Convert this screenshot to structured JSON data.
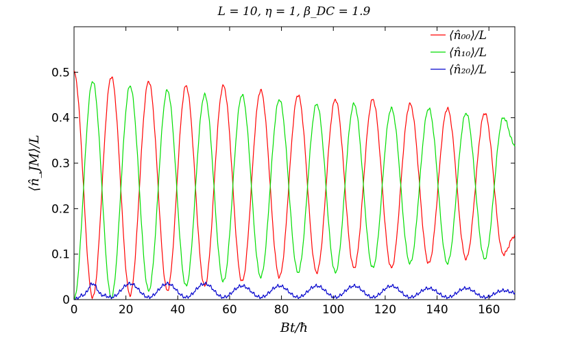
{
  "chart_data": {
    "type": "line",
    "title": "L = 10, η = 1, β_DC = 1.9",
    "xlabel": "Bt/ħ",
    "ylabel": "⟨n̂_JM⟩/L",
    "xlim": [
      0,
      170
    ],
    "ylim": [
      0,
      0.6
    ],
    "x_ticks": [
      "0",
      "20",
      "40",
      "60",
      "80",
      "100",
      "120",
      "140",
      "160"
    ],
    "y_ticks": [
      "0",
      "0.1",
      "0.2",
      "0.3",
      "0.4",
      "0.5"
    ],
    "grid": false,
    "legend_position": "top-right",
    "series": [
      {
        "name": "⟨n̂₀₀⟩/L",
        "color": "#ff0000",
        "extrema": [
          [
            0,
            0.5
          ],
          [
            7.2,
            0.005
          ],
          [
            14.4,
            0.49
          ],
          [
            21.6,
            0.01
          ],
          [
            28.8,
            0.48
          ],
          [
            36.0,
            0.02
          ],
          [
            43.2,
            0.47
          ],
          [
            50.4,
            0.03
          ],
          [
            57.6,
            0.47
          ],
          [
            64.8,
            0.04
          ],
          [
            72.0,
            0.46
          ],
          [
            79.2,
            0.05
          ],
          [
            86.4,
            0.45
          ],
          [
            93.6,
            0.06
          ],
          [
            100.8,
            0.44
          ],
          [
            108.0,
            0.07
          ],
          [
            115.2,
            0.44
          ],
          [
            122.4,
            0.07
          ],
          [
            129.6,
            0.43
          ],
          [
            136.8,
            0.08
          ],
          [
            144.0,
            0.42
          ],
          [
            151.2,
            0.09
          ],
          [
            158.4,
            0.41
          ],
          [
            165.6,
            0.1
          ],
          [
            170,
            0.14
          ]
        ]
      },
      {
        "name": "⟨n̂₁₀⟩/L",
        "color": "#00dd00",
        "extrema": [
          [
            0,
            0.0
          ],
          [
            7.2,
            0.48
          ],
          [
            14.4,
            0.005
          ],
          [
            21.6,
            0.47
          ],
          [
            28.8,
            0.02
          ],
          [
            36.0,
            0.46
          ],
          [
            43.2,
            0.03
          ],
          [
            50.4,
            0.45
          ],
          [
            57.6,
            0.04
          ],
          [
            64.8,
            0.45
          ],
          [
            72.0,
            0.05
          ],
          [
            79.2,
            0.44
          ],
          [
            86.4,
            0.06
          ],
          [
            93.6,
            0.43
          ],
          [
            100.8,
            0.06
          ],
          [
            108.0,
            0.43
          ],
          [
            115.2,
            0.07
          ],
          [
            122.4,
            0.42
          ],
          [
            129.6,
            0.08
          ],
          [
            136.8,
            0.42
          ],
          [
            144.0,
            0.08
          ],
          [
            151.2,
            0.41
          ],
          [
            158.4,
            0.09
          ],
          [
            165.6,
            0.4
          ],
          [
            170,
            0.34
          ]
        ]
      },
      {
        "name": "⟨n̂₂₀⟩/L",
        "color": "#0000cc",
        "peaks": [
          [
            0,
            0.0
          ],
          [
            3.6,
            0.01
          ],
          [
            7.2,
            0.035
          ],
          [
            10.8,
            0.01
          ],
          [
            14.4,
            0.005
          ],
          [
            21.6,
            0.035
          ],
          [
            28.8,
            0.005
          ],
          [
            36.0,
            0.035
          ],
          [
            43.2,
            0.005
          ],
          [
            50.4,
            0.035
          ],
          [
            57.6,
            0.005
          ],
          [
            64.8,
            0.03
          ],
          [
            72.0,
            0.005
          ],
          [
            79.2,
            0.03
          ],
          [
            86.4,
            0.005
          ],
          [
            93.6,
            0.03
          ],
          [
            100.8,
            0.005
          ],
          [
            108.0,
            0.03
          ],
          [
            115.2,
            0.005
          ],
          [
            122.4,
            0.03
          ],
          [
            129.6,
            0.005
          ],
          [
            136.8,
            0.025
          ],
          [
            144.0,
            0.005
          ],
          [
            151.2,
            0.025
          ],
          [
            158.4,
            0.005
          ],
          [
            165.6,
            0.02
          ],
          [
            170,
            0.015
          ]
        ]
      }
    ]
  }
}
